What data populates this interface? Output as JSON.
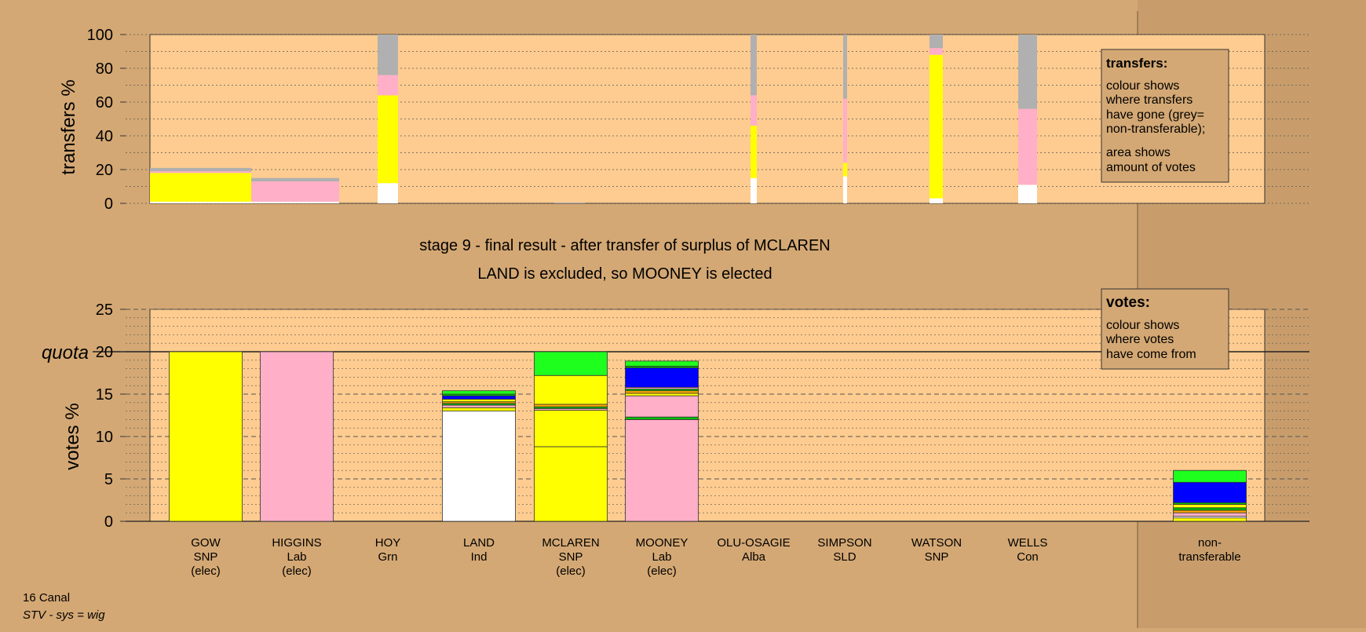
{
  "colors": {
    "background": "#d4a874",
    "plot_bg": "#fecc90",
    "SNP": "#ffff00",
    "Lab": "#ffafc8",
    "Alba": "#0000ff",
    "Con": "#1eff1e",
    "Grn": "#00c000",
    "Ind": "#ffffff",
    "SLD": "#ffa500",
    "nontransferable": "#b0b0b0"
  },
  "title": {
    "line1": "stage 9 - final result - after transfer of surplus of MCLAREN",
    "line2": "LAND is excluded, so MOONEY is elected"
  },
  "footer": {
    "ward": "16 Canal",
    "system": "STV - sys = wig"
  },
  "legend_transfers": {
    "title": "transfers:",
    "lines": [
      "colour shows",
      "where transfers",
      "have gone (grey=",
      "non-transferable);",
      "area shows",
      "amount of votes"
    ]
  },
  "legend_votes": {
    "title": "votes:",
    "lines": [
      "colour shows",
      "where votes",
      "have come from"
    ]
  },
  "chart_data": [
    {
      "type": "bar",
      "name": "transfers",
      "ylabel": "transfers %",
      "ylim": [
        0,
        100
      ],
      "yticks": [
        0,
        20,
        40,
        60,
        80,
        100
      ],
      "columns": [
        {
          "candidate": "GOW",
          "segments": [
            {
              "party": "Ind",
              "value": 1
            },
            {
              "party": "SNP",
              "value": 17
            },
            {
              "party": "Lab",
              "value": 1
            },
            {
              "party": "nontransferable",
              "value": 2
            }
          ]
        },
        {
          "candidate": "HIGGINS",
          "segments": [
            {
              "party": "Ind",
              "value": 1
            },
            {
              "party": "Lab",
              "value": 12
            },
            {
              "party": "nontransferable",
              "value": 2
            }
          ]
        },
        {
          "candidate": "HOY",
          "segments": [
            {
              "party": "Ind",
              "value": 12
            },
            {
              "party": "SNP",
              "value": 52
            },
            {
              "party": "Lab",
              "value": 12
            },
            {
              "party": "nontransferable",
              "value": 24
            }
          ]
        },
        {
          "candidate": "LAND",
          "segments": [
            {
              "party": "nontransferable",
              "value": 0.5
            }
          ]
        },
        {
          "candidate": "MCLAREN",
          "segments": [
            {
              "party": "Ind",
              "value": 15
            },
            {
              "party": "SNP",
              "value": 31
            },
            {
              "party": "Lab",
              "value": 18
            },
            {
              "party": "nontransferable",
              "value": 36
            }
          ]
        },
        {
          "candidate": "MOONEY",
          "segments": [
            {
              "party": "Ind",
              "value": 16
            },
            {
              "party": "SNP",
              "value": 8
            },
            {
              "party": "Lab",
              "value": 38
            },
            {
              "party": "nontransferable",
              "value": 38
            }
          ]
        },
        {
          "candidate": "OLU-OSAGIE",
          "segments": [
            {
              "party": "Ind",
              "value": 3
            },
            {
              "party": "SNP",
              "value": 85
            },
            {
              "party": "Lab",
              "value": 4
            },
            {
              "party": "nontransferable",
              "value": 8
            }
          ]
        },
        {
          "candidate": "SIMPSON",
          "segments": [
            {
              "party": "Ind",
              "value": 11
            },
            {
              "party": "Lab",
              "value": 45
            },
            {
              "party": "nontransferable",
              "value": 44
            }
          ]
        }
      ]
    },
    {
      "type": "bar",
      "name": "votes",
      "ylabel": "votes %",
      "ylim": [
        0,
        25
      ],
      "yticks": [
        0,
        5,
        10,
        15,
        20,
        25
      ],
      "quota": 20,
      "quota_label": "quota",
      "categories": [
        {
          "name": "GOW",
          "party": "SNP",
          "status": "(elec)"
        },
        {
          "name": "HIGGINS",
          "party": "Lab",
          "status": "(elec)"
        },
        {
          "name": "HOY",
          "party": "Grn",
          "status": ""
        },
        {
          "name": "LAND",
          "party": "Ind",
          "status": ""
        },
        {
          "name": "MCLAREN",
          "party": "SNP",
          "status": "(elec)"
        },
        {
          "name": "MOONEY",
          "party": "Lab",
          "status": "(elec)"
        },
        {
          "name": "OLU-OSAGIE",
          "party": "Alba",
          "status": ""
        },
        {
          "name": "SIMPSON",
          "party": "SLD",
          "status": ""
        },
        {
          "name": "WATSON",
          "party": "SNP",
          "status": ""
        },
        {
          "name": "WELLS",
          "party": "Con",
          "status": ""
        }
      ],
      "nontransferable_label": [
        "non-",
        "transferable"
      ],
      "stacks": [
        {
          "candidate": "GOW",
          "segments": [
            {
              "party": "SNP",
              "value": 20
            }
          ]
        },
        {
          "candidate": "HIGGINS",
          "segments": [
            {
              "party": "Lab",
              "value": 20
            }
          ]
        },
        {
          "candidate": "LAND",
          "segments": [
            {
              "party": "Ind",
              "value": 13
            },
            {
              "party": "SNP",
              "value": 0.4
            },
            {
              "party": "Lab",
              "value": 0.3
            },
            {
              "party": "Grn",
              "value": 0.2
            },
            {
              "party": "SLD",
              "value": 0.2
            },
            {
              "party": "SNP",
              "value": 0.3
            },
            {
              "party": "Alba",
              "value": 0.4
            },
            {
              "party": "Grn",
              "value": 0.2
            },
            {
              "party": "Con",
              "value": 0.4
            }
          ]
        },
        {
          "candidate": "MCLAREN",
          "segments": [
            {
              "party": "SNP",
              "value": 8.8
            },
            {
              "party": "SNP",
              "value": 4.3
            },
            {
              "party": "Lab",
              "value": 0.2
            },
            {
              "party": "Grn",
              "value": 0.2
            },
            {
              "party": "SLD",
              "value": 0.3
            },
            {
              "party": "SNP",
              "value": 3.4
            },
            {
              "party": "Con",
              "value": 2.8
            }
          ]
        },
        {
          "candidate": "MOONEY",
          "segments": [
            {
              "party": "Lab",
              "value": 12
            },
            {
              "party": "Grn",
              "value": 0.3
            },
            {
              "party": "Lab",
              "value": 2.5
            },
            {
              "party": "SNP",
              "value": 0.3
            },
            {
              "party": "SLD",
              "value": 0.3
            },
            {
              "party": "Grn",
              "value": 0.2
            },
            {
              "party": "Lab",
              "value": 0.2
            },
            {
              "party": "Alba",
              "value": 2.3
            },
            {
              "party": "Grn",
              "value": 0.2
            },
            {
              "party": "Con",
              "value": 0.6
            }
          ]
        },
        {
          "candidate": "non-transferable",
          "segments": [
            {
              "party": "SNP",
              "value": 0.4
            },
            {
              "party": "Ind",
              "value": 0.2
            },
            {
              "party": "Lab",
              "value": 0.4
            },
            {
              "party": "SLD",
              "value": 0.3
            },
            {
              "party": "Grn",
              "value": 0.3
            },
            {
              "party": "SNP",
              "value": 0.4
            },
            {
              "party": "Grn",
              "value": 0.2
            },
            {
              "party": "Alba",
              "value": 2.4
            },
            {
              "party": "Con",
              "value": 1.4
            }
          ]
        }
      ]
    }
  ]
}
